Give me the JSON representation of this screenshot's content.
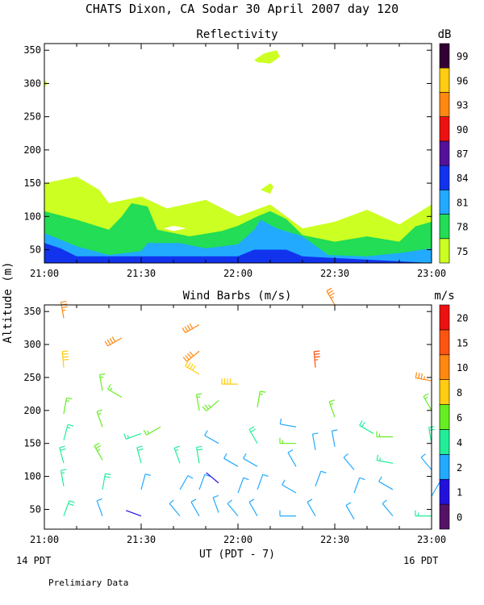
{
  "header": {
    "title": "CHATS Dixon, CA  Sodar  30 April 2007  day 120",
    "left_date": "14 PDT",
    "right_date": "16 PDT",
    "footer": "Prelimiary Data"
  },
  "shared_axes": {
    "ylabel": "Altitude (m)",
    "xlabel": "UT  (PDT - 7)"
  },
  "chart_data": [
    {
      "type": "contour",
      "title": "Reflectivity",
      "x_ticks": [
        "21:00",
        "21:30",
        "22:00",
        "22:30",
        "23:00"
      ],
      "x_range": [
        "21:00",
        "23:00"
      ],
      "y_ticks": [
        50,
        100,
        150,
        200,
        250,
        300,
        350
      ],
      "ylim": [
        30,
        360
      ],
      "colorbar": {
        "unit": "dB",
        "levels": [
          75,
          78,
          81,
          84,
          87,
          90,
          93,
          96,
          99
        ],
        "colors": [
          "#ccff22",
          "#22dd55",
          "#22aaff",
          "#1133ee",
          "#551199",
          "#ee1111",
          "#ff8811",
          "#ffcc11",
          "#330033"
        ]
      },
      "layers": [
        {
          "level": 75,
          "color": "#ccff22",
          "top": [
            [
              0,
              150
            ],
            [
              10,
              160
            ],
            [
              17,
              140
            ],
            [
              20,
              120
            ],
            [
              30,
              130
            ],
            [
              38,
              112
            ],
            [
              50,
              125
            ],
            [
              60,
              100
            ],
            [
              70,
              118
            ],
            [
              80,
              82
            ],
            [
              90,
              92
            ],
            [
              100,
              110
            ],
            [
              110,
              88
            ],
            [
              120,
              118
            ]
          ]
        },
        {
          "level": 78,
          "color": "#22dd55",
          "top": [
            [
              0,
              108
            ],
            [
              10,
              95
            ],
            [
              20,
              80
            ],
            [
              24,
              100
            ],
            [
              27,
              120
            ],
            [
              32,
              115
            ],
            [
              35,
              80
            ],
            [
              45,
              70
            ],
            [
              55,
              78
            ],
            [
              60,
              86
            ],
            [
              66,
              100
            ],
            [
              70,
              108
            ],
            [
              75,
              96
            ],
            [
              80,
              72
            ],
            [
              90,
              62
            ],
            [
              100,
              70
            ],
            [
              110,
              62
            ],
            [
              115,
              85
            ],
            [
              120,
              92
            ]
          ]
        },
        {
          "level": 81,
          "color": "#22aaff",
          "top": [
            [
              0,
              75
            ],
            [
              10,
              55
            ],
            [
              20,
              42
            ],
            [
              30,
              48
            ],
            [
              32,
              60
            ],
            [
              42,
              60
            ],
            [
              50,
              52
            ],
            [
              60,
              58
            ],
            [
              65,
              80
            ],
            [
              67,
              95
            ],
            [
              72,
              82
            ],
            [
              80,
              70
            ],
            [
              88,
              42
            ],
            [
              100,
              40
            ],
            [
              110,
              45
            ],
            [
              120,
              52
            ]
          ]
        },
        {
          "level": 84,
          "color": "#1133ee",
          "top": [
            [
              0,
              60
            ],
            [
              5,
              52
            ],
            [
              10,
              40
            ],
            [
              60,
              40
            ],
            [
              65,
              50
            ],
            [
              75,
              50
            ],
            [
              80,
              40
            ]
          ]
        }
      ],
      "patches": [
        {
          "level": 75,
          "points": [
            [
              0,
              306
            ],
            [
              1,
              300
            ],
            [
              0,
              294
            ]
          ]
        },
        {
          "level": 75,
          "points": [
            [
              65,
              335
            ],
            [
              68,
              345
            ],
            [
              72,
              350
            ],
            [
              73,
              340
            ],
            [
              70,
              330
            ],
            [
              66,
              332
            ]
          ]
        },
        {
          "level": 75,
          "points": [
            [
              67,
              140
            ],
            [
              70,
              134
            ],
            [
              71,
              145
            ],
            [
              70,
              150
            ]
          ]
        }
      ],
      "gaps": [
        {
          "points": [
            [
              37,
              82
            ],
            [
              40,
              86
            ],
            [
              44,
              82
            ],
            [
              40,
              78
            ]
          ]
        }
      ]
    },
    {
      "type": "wind_barbs",
      "title": "Wind Barbs (m/s)",
      "x_ticks": [
        "21:00",
        "21:30",
        "22:00",
        "22:30",
        "23:00"
      ],
      "x_range": [
        "21:00",
        "23:00"
      ],
      "y_ticks": [
        50,
        100,
        150,
        200,
        250,
        300,
        350
      ],
      "ylim": [
        20,
        360
      ],
      "colorbar": {
        "unit": "m/s",
        "levels": [
          0,
          1,
          2,
          4,
          6,
          8,
          10,
          15,
          20
        ],
        "colors": [
          "#551166",
          "#2211dd",
          "#22aaff",
          "#22ee99",
          "#66ee22",
          "#ffcc11",
          "#ff8811",
          "#ff5511",
          "#ee1111"
        ]
      },
      "barbs_note": "speed (m/s) and direction (deg from) per time/altitude",
      "barbs": [
        {
          "t": "21:06",
          "z": 340,
          "spd": 11,
          "dir": 350
        },
        {
          "t": "21:06",
          "z": 265,
          "spd": 9,
          "dir": 355
        },
        {
          "t": "21:06",
          "z": 195,
          "spd": 6,
          "dir": 10
        },
        {
          "t": "21:06",
          "z": 155,
          "spd": 5,
          "dir": 15
        },
        {
          "t": "21:06",
          "z": 120,
          "spd": 4,
          "dir": 345
        },
        {
          "t": "21:06",
          "z": 85,
          "spd": 5,
          "dir": 350
        },
        {
          "t": "21:06",
          "z": 40,
          "spd": 4,
          "dir": 20
        },
        {
          "t": "21:18",
          "z": 230,
          "spd": 6,
          "dir": 350
        },
        {
          "t": "21:18",
          "z": 175,
          "spd": 6,
          "dir": 340
        },
        {
          "t": "21:18",
          "z": 125,
          "spd": 7,
          "dir": 330
        },
        {
          "t": "21:18",
          "z": 80,
          "spd": 4,
          "dir": 10
        },
        {
          "t": "21:18",
          "z": 40,
          "spd": 3,
          "dir": 340
        },
        {
          "t": "21:24",
          "z": 310,
          "spd": 14,
          "dir": 240
        },
        {
          "t": "21:24",
          "z": 220,
          "spd": 6,
          "dir": 300
        },
        {
          "t": "21:30",
          "z": 165,
          "spd": 5,
          "dir": 250
        },
        {
          "t": "21:30",
          "z": 120,
          "spd": 4,
          "dir": 345
        },
        {
          "t": "21:30",
          "z": 80,
          "spd": 3,
          "dir": 15
        },
        {
          "t": "21:30",
          "z": 40,
          "spd": 1,
          "dir": 290
        },
        {
          "t": "21:36",
          "z": 175,
          "spd": 6,
          "dir": 240
        },
        {
          "t": "21:42",
          "z": 120,
          "spd": 5,
          "dir": 340
        },
        {
          "t": "21:42",
          "z": 80,
          "spd": 3,
          "dir": 30
        },
        {
          "t": "21:42",
          "z": 40,
          "spd": 3,
          "dir": 320
        },
        {
          "t": "21:48",
          "z": 330,
          "spd": 14,
          "dir": 240
        },
        {
          "t": "21:48",
          "z": 290,
          "spd": 14,
          "dir": 230
        },
        {
          "t": "21:48",
          "z": 255,
          "spd": 9,
          "dir": 300
        },
        {
          "t": "21:48",
          "z": 200,
          "spd": 6,
          "dir": 350
        },
        {
          "t": "21:48",
          "z": 120,
          "spd": 4,
          "dir": 350
        },
        {
          "t": "21:48",
          "z": 80,
          "spd": 3,
          "dir": 20
        },
        {
          "t": "21:48",
          "z": 40,
          "spd": 3,
          "dir": 330
        },
        {
          "t": "21:54",
          "z": 215,
          "spd": 7,
          "dir": 230
        },
        {
          "t": "21:54",
          "z": 150,
          "spd": 3,
          "dir": 300
        },
        {
          "t": "21:54",
          "z": 90,
          "spd": 1,
          "dir": 310
        },
        {
          "t": "21:54",
          "z": 45,
          "spd": 3,
          "dir": 340
        },
        {
          "t": "22:00",
          "z": 240,
          "spd": 9,
          "dir": 270
        },
        {
          "t": "22:00",
          "z": 115,
          "spd": 3,
          "dir": 300
        },
        {
          "t": "22:00",
          "z": 75,
          "spd": 3,
          "dir": 20
        },
        {
          "t": "22:00",
          "z": 40,
          "spd": 3,
          "dir": 320
        },
        {
          "t": "22:06",
          "z": 205,
          "spd": 6,
          "dir": 10
        },
        {
          "t": "22:06",
          "z": 150,
          "spd": 4,
          "dir": 330
        },
        {
          "t": "22:06",
          "z": 115,
          "spd": 3,
          "dir": 300
        },
        {
          "t": "22:06",
          "z": 80,
          "spd": 3,
          "dir": 20
        },
        {
          "t": "22:06",
          "z": 40,
          "spd": 3,
          "dir": 330
        },
        {
          "t": "22:18",
          "z": 175,
          "spd": 3,
          "dir": 280
        },
        {
          "t": "22:18",
          "z": 150,
          "spd": 6,
          "dir": 270
        },
        {
          "t": "22:18",
          "z": 115,
          "spd": 3,
          "dir": 330
        },
        {
          "t": "22:18",
          "z": 75,
          "spd": 3,
          "dir": 300
        },
        {
          "t": "22:18",
          "z": 40,
          "spd": 3,
          "dir": 270
        },
        {
          "t": "22:24",
          "z": 265,
          "spd": 16,
          "dir": 355
        },
        {
          "t": "22:24",
          "z": 140,
          "spd": 3,
          "dir": 350
        },
        {
          "t": "22:24",
          "z": 85,
          "spd": 3,
          "dir": 20
        },
        {
          "t": "22:24",
          "z": 40,
          "spd": 2,
          "dir": 330
        },
        {
          "t": "22:30",
          "z": 360,
          "spd": 12,
          "dir": 330
        },
        {
          "t": "22:30",
          "z": 190,
          "spd": 6,
          "dir": 340
        },
        {
          "t": "22:30",
          "z": 145,
          "spd": 3,
          "dir": 350
        },
        {
          "t": "22:36",
          "z": 110,
          "spd": 3,
          "dir": 320
        },
        {
          "t": "22:36",
          "z": 75,
          "spd": 3,
          "dir": 20
        },
        {
          "t": "22:36",
          "z": 35,
          "spd": 3,
          "dir": 330
        },
        {
          "t": "22:42",
          "z": 165,
          "spd": 4,
          "dir": 300
        },
        {
          "t": "22:48",
          "z": 160,
          "spd": 6,
          "dir": 270
        },
        {
          "t": "22:48",
          "z": 120,
          "spd": 5,
          "dir": 280
        },
        {
          "t": "22:48",
          "z": 80,
          "spd": 3,
          "dir": 300
        },
        {
          "t": "22:48",
          "z": 40,
          "spd": 3,
          "dir": 320
        },
        {
          "t": "23:00",
          "z": 245,
          "spd": 11,
          "dir": 280
        },
        {
          "t": "23:00",
          "z": 200,
          "spd": 6,
          "dir": 330
        },
        {
          "t": "23:00",
          "z": 150,
          "spd": 4,
          "dir": 350
        },
        {
          "t": "23:00",
          "z": 110,
          "spd": 3,
          "dir": 320
        },
        {
          "t": "23:00",
          "z": 70,
          "spd": 3,
          "dir": 30
        },
        {
          "t": "23:00",
          "z": 40,
          "spd": 5,
          "dir": 270
        }
      ]
    }
  ]
}
